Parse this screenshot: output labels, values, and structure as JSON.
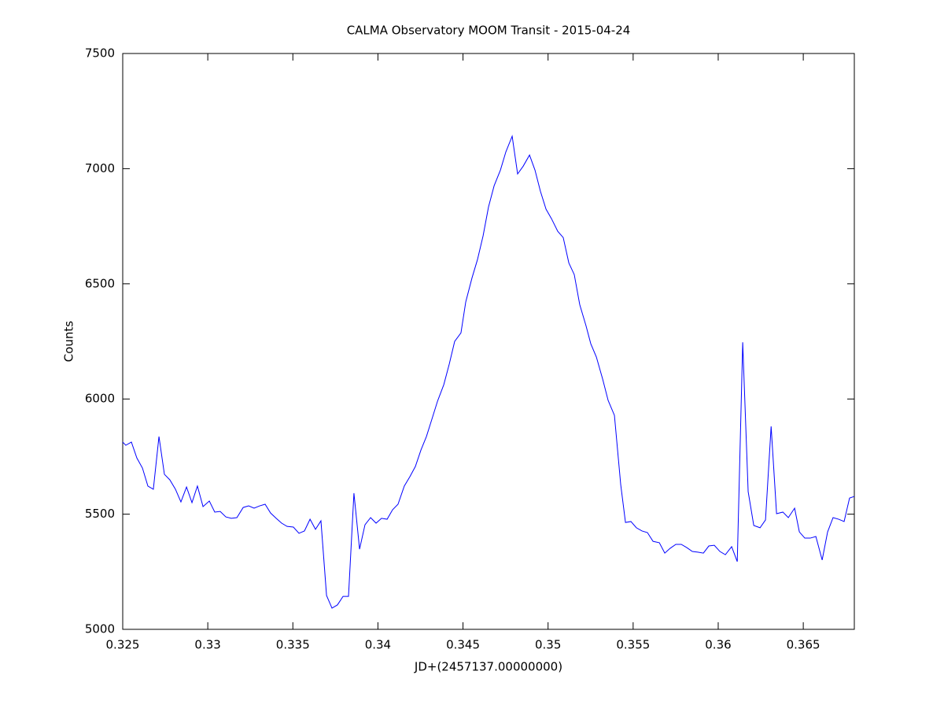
{
  "chart_data": {
    "type": "line",
    "title": "CALMA Observatory MOOM Transit - 2015-04-24",
    "x_label": "JD+(2457137.00000000)",
    "y_label": "Counts",
    "xlim": [
      0.325,
      0.368
    ],
    "ylim": [
      5000,
      7500
    ],
    "xticks": [
      0.325,
      0.33,
      0.335,
      0.34,
      0.345,
      0.35,
      0.355,
      0.36,
      0.365
    ],
    "yticks": [
      5000,
      5500,
      6000,
      6500,
      7000,
      7500
    ],
    "grid": false,
    "x": [
      0.325,
      0.32518,
      0.32551,
      0.32583,
      0.32616,
      0.32648,
      0.3268,
      0.32713,
      0.32745,
      0.32777,
      0.3281,
      0.32842,
      0.32875,
      0.32907,
      0.32939,
      0.32972,
      0.33009,
      0.33041,
      0.33073,
      0.33106,
      0.33138,
      0.33171,
      0.33208,
      0.3324,
      0.33272,
      0.33305,
      0.33337,
      0.33369,
      0.33402,
      0.33434,
      0.33466,
      0.33503,
      0.33536,
      0.33568,
      0.33601,
      0.33633,
      0.33665,
      0.33698,
      0.3373,
      0.33762,
      0.33795,
      0.33827,
      0.33859,
      0.33892,
      0.33924,
      0.33957,
      0.33989,
      0.34021,
      0.34054,
      0.34086,
      0.34118,
      0.34155,
      0.34188,
      0.3422,
      0.34253,
      0.34285,
      0.34317,
      0.3435,
      0.34387,
      0.34419,
      0.34451,
      0.34488,
      0.34516,
      0.34553,
      0.34585,
      0.34618,
      0.3465,
      0.34683,
      0.3472,
      0.34752,
      0.34789,
      0.34821,
      0.34854,
      0.34891,
      0.34923,
      0.34955,
      0.34988,
      0.3502,
      0.35057,
      0.35089,
      0.35122,
      0.35154,
      0.35186,
      0.35223,
      0.35251,
      0.35284,
      0.35321,
      0.35353,
      0.3539,
      0.35427,
      0.35455,
      0.35487,
      0.35519,
      0.35552,
      0.35584,
      0.35617,
      0.35654,
      0.35686,
      0.35718,
      0.35751,
      0.35783,
      0.35815,
      0.35848,
      0.3588,
      0.35913,
      0.35945,
      0.35977,
      0.3601,
      0.36042,
      0.36079,
      0.36112,
      0.36144,
      0.36176,
      0.36209,
      0.36246,
      0.36278,
      0.36311,
      0.36343,
      0.3638,
      0.36412,
      0.36449,
      0.36477,
      0.36509,
      0.36541,
      0.36574,
      0.36611,
      0.36643,
      0.36675,
      0.36708,
      0.3674,
      0.36772,
      0.368
    ],
    "series": [
      {
        "color": "#0000ff",
        "values": [
          5813,
          5799,
          5813,
          5744,
          5700,
          5622,
          5608,
          5837,
          5673,
          5649,
          5608,
          5553,
          5618,
          5550,
          5622,
          5533,
          5557,
          5509,
          5512,
          5488,
          5482,
          5485,
          5529,
          5536,
          5526,
          5536,
          5543,
          5505,
          5482,
          5461,
          5447,
          5444,
          5417,
          5427,
          5478,
          5434,
          5471,
          5147,
          5092,
          5106,
          5143,
          5143,
          5591,
          5348,
          5454,
          5485,
          5461,
          5482,
          5478,
          5519,
          5543,
          5622,
          5663,
          5707,
          5779,
          5837,
          5912,
          5990,
          6062,
          6151,
          6250,
          6287,
          6421,
          6526,
          6605,
          6708,
          6834,
          6926,
          6994,
          7073,
          7141,
          6977,
          7011,
          7059,
          6994,
          6902,
          6824,
          6783,
          6728,
          6701,
          6591,
          6540,
          6410,
          6318,
          6240,
          6182,
          6086,
          5994,
          5929,
          5628,
          5464,
          5468,
          5441,
          5427,
          5420,
          5382,
          5376,
          5331,
          5352,
          5369,
          5369,
          5355,
          5338,
          5335,
          5331,
          5362,
          5365,
          5338,
          5324,
          5359,
          5294,
          6246,
          5598,
          5451,
          5441,
          5475,
          5881,
          5502,
          5509,
          5485,
          5526,
          5423,
          5396,
          5396,
          5403,
          5301,
          5423,
          5485,
          5478,
          5468,
          5570,
          5577
        ]
      }
    ]
  }
}
